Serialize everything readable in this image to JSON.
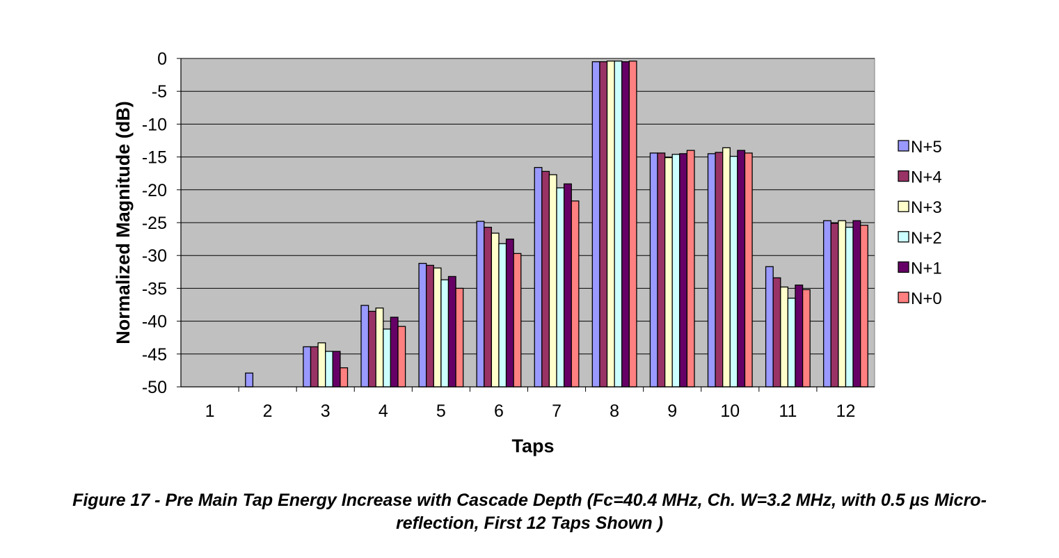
{
  "chart_data": {
    "type": "bar",
    "xlabel": "Taps",
    "ylabel": "Normalized Magnitude (dB)",
    "ylim": [
      -50,
      0
    ],
    "yticks": [
      0,
      -5,
      -10,
      -15,
      -20,
      -25,
      -30,
      -35,
      -40,
      -45,
      -50
    ],
    "grid": true,
    "legend_position": "right",
    "categories": [
      "1",
      "2",
      "3",
      "4",
      "5",
      "6",
      "7",
      "8",
      "9",
      "10",
      "11",
      "12"
    ],
    "series": [
      {
        "name": "N+5",
        "color": "#9999ff",
        "values": [
          -50,
          -47.9,
          -43.9,
          -37.6,
          -31.2,
          -24.8,
          -16.6,
          -0.5,
          -14.4,
          -14.5,
          -31.7,
          -24.7
        ]
      },
      {
        "name": "N+4",
        "color": "#993366",
        "values": [
          -50,
          -50,
          -43.9,
          -38.5,
          -31.5,
          -25.7,
          -17.2,
          -0.5,
          -14.4,
          -14.3,
          -33.4,
          -25.1
        ]
      },
      {
        "name": "N+3",
        "color": "#ffffcc",
        "values": [
          -50,
          -50,
          -43.3,
          -38.0,
          -31.9,
          -26.6,
          -17.7,
          -0.4,
          -15.1,
          -13.6,
          -34.8,
          -24.7
        ]
      },
      {
        "name": "N+2",
        "color": "#ccffff",
        "values": [
          -50,
          -50,
          -44.6,
          -41.2,
          -33.7,
          -28.2,
          -19.7,
          -0.4,
          -14.6,
          -14.9,
          -36.5,
          -25.7
        ]
      },
      {
        "name": "N+1",
        "color": "#660066",
        "values": [
          -50,
          -50,
          -44.6,
          -39.4,
          -33.2,
          -27.5,
          -19.1,
          -0.5,
          -14.5,
          -14.0,
          -34.5,
          -24.7
        ]
      },
      {
        "name": "N+0",
        "color": "#ff8080",
        "values": [
          -50,
          -50,
          -47.1,
          -40.8,
          -35.0,
          -29.7,
          -21.7,
          -0.4,
          -14.0,
          -14.4,
          -35.2,
          -25.4
        ]
      }
    ]
  },
  "caption": {
    "line1": "Figure 17 - Pre Main Tap Energy Increase with Cascade Depth (Fc=40.4 MHz, Ch. W=3.2 MHz, with 0.5 µs Micro-",
    "line2": "reflection, First 12 Taps Shown )"
  }
}
